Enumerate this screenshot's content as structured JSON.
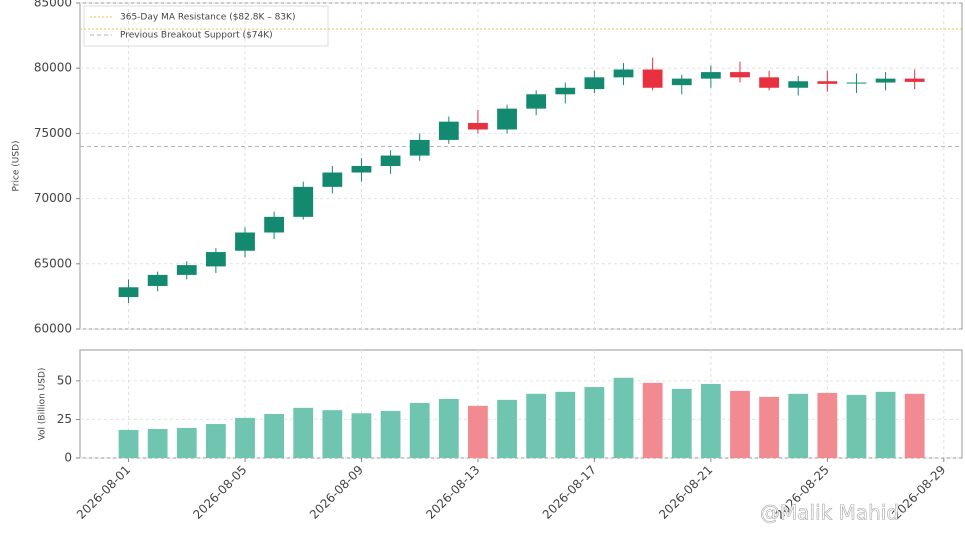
{
  "chart_data": [
    {
      "type": "candlestick",
      "x": [
        "2026-08-01",
        "2026-08-02",
        "2026-08-03",
        "2026-08-04",
        "2026-08-05",
        "2026-08-06",
        "2026-08-07",
        "2026-08-08",
        "2026-08-09",
        "2026-08-10",
        "2026-08-11",
        "2026-08-12",
        "2026-08-13",
        "2026-08-14",
        "2026-08-15",
        "2026-08-16",
        "2026-08-17",
        "2026-08-18",
        "2026-08-19",
        "2026-08-20",
        "2026-08-21",
        "2026-08-22",
        "2026-08-23",
        "2026-08-24",
        "2026-08-25",
        "2026-08-26",
        "2026-08-27",
        "2026-08-28"
      ],
      "open": [
        62450,
        63300,
        64150,
        64800,
        66000,
        67400,
        68600,
        70900,
        72000,
        72500,
        73300,
        74500,
        75800,
        75300,
        76900,
        78000,
        78400,
        79300,
        79900,
        78700,
        79200,
        79700,
        79300,
        78500,
        79000,
        78850,
        78900,
        79200
      ],
      "high": [
        63800,
        64400,
        65200,
        66200,
        67800,
        69000,
        71300,
        72500,
        73100,
        73700,
        75000,
        76300,
        76800,
        77200,
        78300,
        78900,
        79800,
        80400,
        80800,
        79500,
        80200,
        80500,
        79800,
        79400,
        79800,
        79600,
        79700,
        79900
      ],
      "low": [
        62000,
        62900,
        63800,
        64300,
        65500,
        66900,
        68400,
        70400,
        71300,
        71900,
        72900,
        74200,
        75000,
        75000,
        76400,
        77300,
        78100,
        78700,
        78300,
        78000,
        78500,
        78900,
        78300,
        77900,
        78200,
        78100,
        78300,
        78400
      ],
      "close": [
        63200,
        64150,
        64900,
        65900,
        67400,
        68600,
        70900,
        72000,
        72500,
        73300,
        74500,
        75900,
        75300,
        76900,
        78000,
        78500,
        79300,
        79900,
        78500,
        79200,
        79700,
        79300,
        78500,
        79000,
        78800,
        78900,
        79200,
        78950
      ],
      "ylabel": "Price (USD)",
      "ylim": [
        60000,
        85000
      ],
      "yticks": [
        60000,
        65000,
        70000,
        75000,
        80000,
        85000
      ],
      "xlim": [
        "2026-07-30T08:00",
        "2026-08-29T15:00"
      ],
      "grid": true,
      "up_color": "#138a6f",
      "down_color": "#e8303f",
      "legend": "upper left",
      "reference_lines": [
        {
          "label": "365-Day MA Resistance ($82.8K – 83K)",
          "value": 83000,
          "color": "#f5c04a",
          "style": "dotted"
        },
        {
          "label": "Previous Breakout Support ($74K)",
          "value": 74000,
          "color": "#b5b5b5",
          "style": "dashed"
        }
      ]
    },
    {
      "type": "bar",
      "x": [
        "2026-08-01",
        "2026-08-02",
        "2026-08-03",
        "2026-08-04",
        "2026-08-05",
        "2026-08-06",
        "2026-08-07",
        "2026-08-08",
        "2026-08-09",
        "2026-08-10",
        "2026-08-11",
        "2026-08-12",
        "2026-08-13",
        "2026-08-14",
        "2026-08-15",
        "2026-08-16",
        "2026-08-17",
        "2026-08-18",
        "2026-08-19",
        "2026-08-20",
        "2026-08-21",
        "2026-08-22",
        "2026-08-23",
        "2026-08-24",
        "2026-08-25",
        "2026-08-26",
        "2026-08-27",
        "2026-08-28"
      ],
      "values": [
        18.2,
        18.8,
        19.5,
        22,
        26,
        28.5,
        32.5,
        31,
        29,
        30.5,
        35.7,
        38.3,
        33.8,
        37.7,
        41.6,
        42.9,
        46,
        52,
        48.7,
        44.8,
        48,
        43.5,
        39.6,
        41.6,
        42.2,
        40.9,
        42.9,
        41.6
      ],
      "ylabel": "Vol (Billion USD)",
      "ylim": [
        0,
        70
      ],
      "yticks": [
        0,
        25,
        50
      ],
      "xlim": [
        "2026-07-30T08:00",
        "2026-08-29T15:00"
      ],
      "xticks": [
        "2026-08-01",
        "2026-08-05",
        "2026-08-09",
        "2026-08-13",
        "2026-08-17",
        "2026-08-21",
        "2026-08-25",
        "2026-08-29"
      ],
      "grid": true,
      "up_color": "#6fc5b0",
      "down_color": "#f28a92"
    }
  ],
  "watermark": "@Malik Mahid"
}
